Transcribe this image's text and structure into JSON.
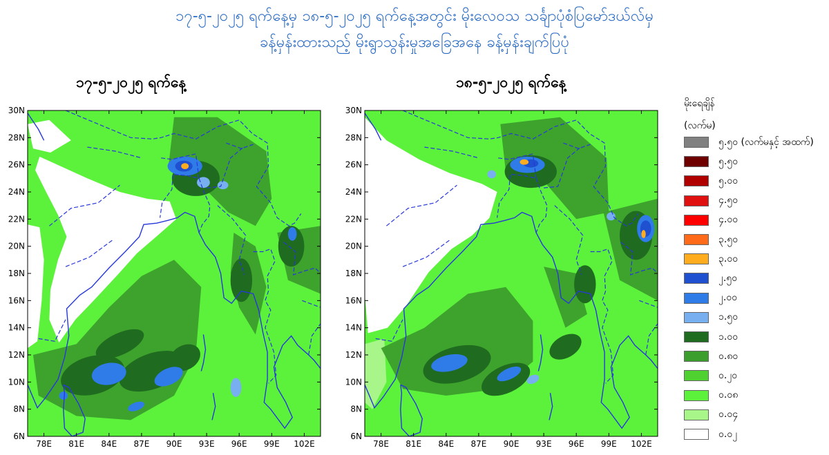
{
  "title": {
    "line1": "၁၇-၅-၂၀၂၅ ရက်နေ့မှ ၁၈-၅-၂၀၂၅ ရက်နေ့အတွင်း မိုးလေဝသ သင်္ချာပုံစံပြမော်ဒယ်လ်မှ",
    "line2": "ခန့်မှန်းထားသည့် မိုးရွာသွန်းမှုအခြေအနေ ခန့်မှန်းချက်ပြပုံ"
  },
  "maps": [
    {
      "title": "၁၇-၅-၂၀၂၅ ရက်နေ့"
    },
    {
      "title": "၁၈-၅-၂၀၂၅ ရက်နေ့"
    }
  ],
  "axes": {
    "lat_labels": [
      "30N",
      "28N",
      "26N",
      "24N",
      "22N",
      "20N",
      "18N",
      "16N",
      "14N",
      "12N",
      "10N",
      "8N",
      "6N"
    ],
    "lon_labels": [
      "78E",
      "81E",
      "84E",
      "87E",
      "90E",
      "93E",
      "96E",
      "99E",
      "102E"
    ],
    "lat_range": [
      6,
      30
    ],
    "lon_range": [
      76.5,
      103.5
    ]
  },
  "legend": {
    "title": "မိုးရေချိန်",
    "unit": "(လက်မ)",
    "items": [
      {
        "label": "၅.၅၀ (လက်မနှင့် အထက်)",
        "color": "#808080"
      },
      {
        "label": "၅.၅၀",
        "color": "#6e0000"
      },
      {
        "label": "၅.၀၀",
        "color": "#b00000"
      },
      {
        "label": "၄.၅၀",
        "color": "#e01010"
      },
      {
        "label": "၄.၀၀",
        "color": "#ff0000"
      },
      {
        "label": "၃.၅၀",
        "color": "#ff6a1a"
      },
      {
        "label": "၃.၀၀",
        "color": "#ffad1f"
      },
      {
        "label": "၂.၅၀",
        "color": "#1e50d0"
      },
      {
        "label": "၂.၀၀",
        "color": "#2f7be8"
      },
      {
        "label": "၁.၅၀",
        "color": "#78aff0"
      },
      {
        "label": "၁.၀၀",
        "color": "#1f6b1f"
      },
      {
        "label": "၀.၈၀",
        "color": "#3c9e2c"
      },
      {
        "label": "၀.၂၀",
        "color": "#4fd12f"
      },
      {
        "label": "၀.၀၈",
        "color": "#5cf23c"
      },
      {
        "label": "၀.၀၄",
        "color": "#a8f58a"
      },
      {
        "label": "၀.၀၂",
        "color": "#ffffff"
      }
    ]
  }
}
